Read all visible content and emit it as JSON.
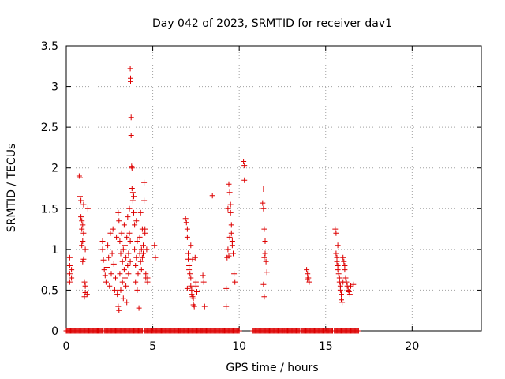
{
  "chart_data": {
    "type": "scatter",
    "title": "Day 042 of 2023, SRMTID for receiver dav1",
    "xlabel": "GPS time / hours",
    "ylabel": "SRMTID / TECUs",
    "xlim": [
      0,
      24
    ],
    "ylim": [
      0,
      3.5
    ],
    "x_ticks": [
      0,
      5,
      10,
      15,
      20
    ],
    "x_tick_labels": [
      "0",
      "5",
      "10",
      "15",
      "20"
    ],
    "y_ticks": [
      0,
      0.5,
      1,
      1.5,
      2,
      2.5,
      3,
      3.5
    ],
    "y_tick_labels": [
      "0",
      "0.5",
      "1",
      "1.5",
      "2",
      "2.5",
      "3",
      "3.5"
    ],
    "grid": true,
    "marker": "plus",
    "color": "#dd0000",
    "series": [
      {
        "name": "SRMTID",
        "points": [
          [
            0.2,
            0.9
          ],
          [
            0.2,
            0.8
          ],
          [
            0.2,
            0.7
          ],
          [
            0.2,
            0.6
          ],
          [
            0.3,
            0.65
          ],
          [
            0.3,
            0.75
          ],
          [
            0.75,
            1.9
          ],
          [
            0.8,
            1.88
          ],
          [
            0.8,
            1.65
          ],
          [
            0.85,
            1.6
          ],
          [
            0.85,
            1.4
          ],
          [
            0.9,
            1.35
          ],
          [
            0.9,
            1.25
          ],
          [
            0.95,
            1.3
          ],
          [
            0.95,
            1.1
          ],
          [
            0.9,
            1.05
          ],
          [
            1.0,
            1.55
          ],
          [
            1.0,
            1.2
          ],
          [
            0.95,
            0.85
          ],
          [
            1.0,
            0.88
          ],
          [
            1.05,
            0.6
          ],
          [
            1.1,
            0.55
          ],
          [
            1.1,
            0.47
          ],
          [
            1.05,
            0.42
          ],
          [
            1.2,
            0.45
          ],
          [
            1.25,
            1.5
          ],
          [
            1.1,
            1.0
          ],
          [
            2.1,
            1.1
          ],
          [
            2.1,
            1.0
          ],
          [
            2.15,
            0.87
          ],
          [
            2.2,
            0.75
          ],
          [
            2.25,
            0.68
          ],
          [
            2.3,
            0.6
          ],
          [
            2.35,
            0.78
          ],
          [
            2.4,
            1.05
          ],
          [
            2.45,
            0.9
          ],
          [
            2.5,
            0.55
          ],
          [
            2.55,
            1.2
          ],
          [
            2.6,
            0.7
          ],
          [
            2.65,
            0.95
          ],
          [
            2.7,
            1.25
          ],
          [
            2.75,
            0.82
          ],
          [
            2.8,
            0.5
          ],
          [
            2.85,
            0.65
          ],
          [
            2.9,
            1.15
          ],
          [
            2.95,
            0.45
          ],
          [
            3.0,
            0.3
          ],
          [
            3.0,
            1.45
          ],
          [
            3.05,
            0.25
          ],
          [
            3.05,
            1.35
          ],
          [
            3.1,
            0.7
          ],
          [
            3.1,
            1.1
          ],
          [
            3.15,
            0.95
          ],
          [
            3.15,
            0.5
          ],
          [
            3.2,
            1.2
          ],
          [
            3.25,
            0.6
          ],
          [
            3.25,
            0.85
          ],
          [
            3.3,
            1.0
          ],
          [
            3.3,
            0.4
          ],
          [
            3.35,
            0.75
          ],
          [
            3.35,
            1.3
          ],
          [
            3.4,
            0.65
          ],
          [
            3.4,
            1.05
          ],
          [
            3.45,
            0.55
          ],
          [
            3.45,
            0.9
          ],
          [
            3.5,
            1.15
          ],
          [
            3.5,
            0.35
          ],
          [
            3.55,
            0.8
          ],
          [
            3.55,
            1.4
          ],
          [
            3.6,
            0.95
          ],
          [
            3.6,
            0.7
          ],
          [
            3.65,
            1.5
          ],
          [
            3.65,
            1.2
          ],
          [
            3.7,
            1.1
          ],
          [
            3.7,
            0.85
          ],
          [
            3.7,
            3.22
          ],
          [
            3.72,
            3.1
          ],
          [
            3.72,
            3.06
          ],
          [
            3.75,
            2.62
          ],
          [
            3.75,
            2.4
          ],
          [
            3.78,
            2.02
          ],
          [
            3.8,
            2.0
          ],
          [
            3.8,
            1.75
          ],
          [
            3.85,
            1.7
          ],
          [
            3.85,
            1.6
          ],
          [
            3.9,
            1.65
          ],
          [
            3.9,
            1.45
          ],
          [
            3.95,
            1.3
          ],
          [
            3.95,
            1.0
          ],
          [
            4.0,
            0.8
          ],
          [
            4.0,
            0.6
          ],
          [
            4.05,
            0.9
          ],
          [
            4.05,
            1.35
          ],
          [
            4.1,
            0.5
          ],
          [
            4.1,
            1.1
          ],
          [
            4.15,
            0.7
          ],
          [
            4.2,
            0.28
          ],
          [
            4.25,
            0.95
          ],
          [
            4.25,
            1.15
          ],
          [
            4.3,
            1.45
          ],
          [
            4.3,
            0.85
          ],
          [
            4.35,
            1.0
          ],
          [
            4.35,
            0.75
          ],
          [
            4.4,
            1.25
          ],
          [
            4.4,
            0.9
          ],
          [
            4.45,
            1.05
          ],
          [
            4.45,
            0.95
          ],
          [
            4.5,
            1.82
          ],
          [
            4.5,
            1.6
          ],
          [
            4.55,
            1.25
          ],
          [
            4.55,
            1.2
          ],
          [
            4.6,
            0.65
          ],
          [
            4.6,
            0.7
          ],
          [
            4.65,
            1.0
          ],
          [
            4.7,
            0.6
          ],
          [
            4.7,
            0.65
          ],
          [
            5.1,
            1.05
          ],
          [
            5.15,
            0.9
          ],
          [
            6.9,
            1.38
          ],
          [
            6.95,
            1.33
          ],
          [
            7.0,
            1.25
          ],
          [
            7.0,
            1.15
          ],
          [
            7.05,
            0.95
          ],
          [
            7.05,
            0.88
          ],
          [
            7.1,
            0.8
          ],
          [
            7.1,
            0.75
          ],
          [
            7.15,
            0.7
          ],
          [
            7.2,
            0.65
          ],
          [
            7.2,
            0.55
          ],
          [
            7.25,
            0.5
          ],
          [
            7.25,
            0.45
          ],
          [
            7.3,
            0.42
          ],
          [
            7.35,
            0.4
          ],
          [
            7.35,
            0.32
          ],
          [
            7.4,
            0.3
          ],
          [
            7.45,
            0.9
          ],
          [
            7.5,
            0.6
          ],
          [
            7.5,
            0.55
          ],
          [
            7.55,
            0.48
          ],
          [
            7.2,
            1.05
          ],
          [
            7.3,
            0.88
          ],
          [
            7.0,
            0.52
          ],
          [
            7.9,
            0.68
          ],
          [
            7.95,
            0.6
          ],
          [
            8.0,
            0.3
          ],
          [
            8.45,
            1.66
          ],
          [
            9.25,
            0.3
          ],
          [
            9.25,
            0.52
          ],
          [
            9.3,
            0.9
          ],
          [
            9.35,
            1.5
          ],
          [
            9.4,
            1.8
          ],
          [
            9.45,
            1.7
          ],
          [
            9.5,
            1.55
          ],
          [
            9.5,
            1.45
          ],
          [
            9.55,
            1.3
          ],
          [
            9.55,
            1.2
          ],
          [
            9.6,
            1.1
          ],
          [
            9.6,
            1.05
          ],
          [
            9.65,
            0.95
          ],
          [
            9.7,
            0.7
          ],
          [
            9.75,
            0.6
          ],
          [
            9.35,
            1.0
          ],
          [
            9.4,
            0.92
          ],
          [
            9.45,
            1.15
          ],
          [
            10.25,
            2.08
          ],
          [
            10.3,
            2.03
          ],
          [
            10.3,
            1.85
          ],
          [
            11.4,
            1.74
          ],
          [
            11.35,
            1.57
          ],
          [
            11.4,
            1.5
          ],
          [
            11.45,
            1.25
          ],
          [
            11.5,
            1.1
          ],
          [
            11.5,
            0.95
          ],
          [
            11.45,
            0.9
          ],
          [
            11.55,
            0.85
          ],
          [
            11.6,
            0.72
          ],
          [
            11.4,
            0.57
          ],
          [
            11.45,
            0.42
          ],
          [
            13.9,
            0.75
          ],
          [
            13.95,
            0.7
          ],
          [
            14.0,
            0.65
          ],
          [
            14.05,
            0.6
          ],
          [
            13.95,
            0.63
          ],
          [
            15.55,
            1.25
          ],
          [
            15.6,
            1.2
          ],
          [
            15.6,
            0.95
          ],
          [
            15.65,
            0.9
          ],
          [
            15.65,
            0.85
          ],
          [
            15.7,
            0.8
          ],
          [
            15.7,
            0.75
          ],
          [
            15.75,
            0.7
          ],
          [
            15.8,
            0.65
          ],
          [
            15.8,
            0.6
          ],
          [
            15.85,
            0.55
          ],
          [
            15.85,
            0.5
          ],
          [
            15.9,
            0.45
          ],
          [
            15.9,
            0.38
          ],
          [
            15.95,
            0.35
          ],
          [
            16.0,
            0.9
          ],
          [
            16.05,
            0.85
          ],
          [
            16.1,
            0.8
          ],
          [
            16.1,
            0.75
          ],
          [
            16.15,
            0.65
          ],
          [
            16.2,
            0.6
          ],
          [
            16.25,
            0.55
          ],
          [
            16.3,
            0.5
          ],
          [
            16.35,
            0.48
          ],
          [
            16.4,
            0.45
          ],
          [
            16.45,
            0.55
          ],
          [
            16.6,
            0.57
          ],
          [
            15.7,
            1.05
          ],
          [
            16.0,
            0.6
          ]
        ],
        "zero_ranges": [
          [
            0.0,
            2.1
          ],
          [
            2.2,
            4.4
          ],
          [
            4.5,
            10.0
          ],
          [
            10.8,
            13.5
          ],
          [
            13.6,
            15.4
          ],
          [
            15.5,
            16.9
          ]
        ]
      }
    ]
  }
}
